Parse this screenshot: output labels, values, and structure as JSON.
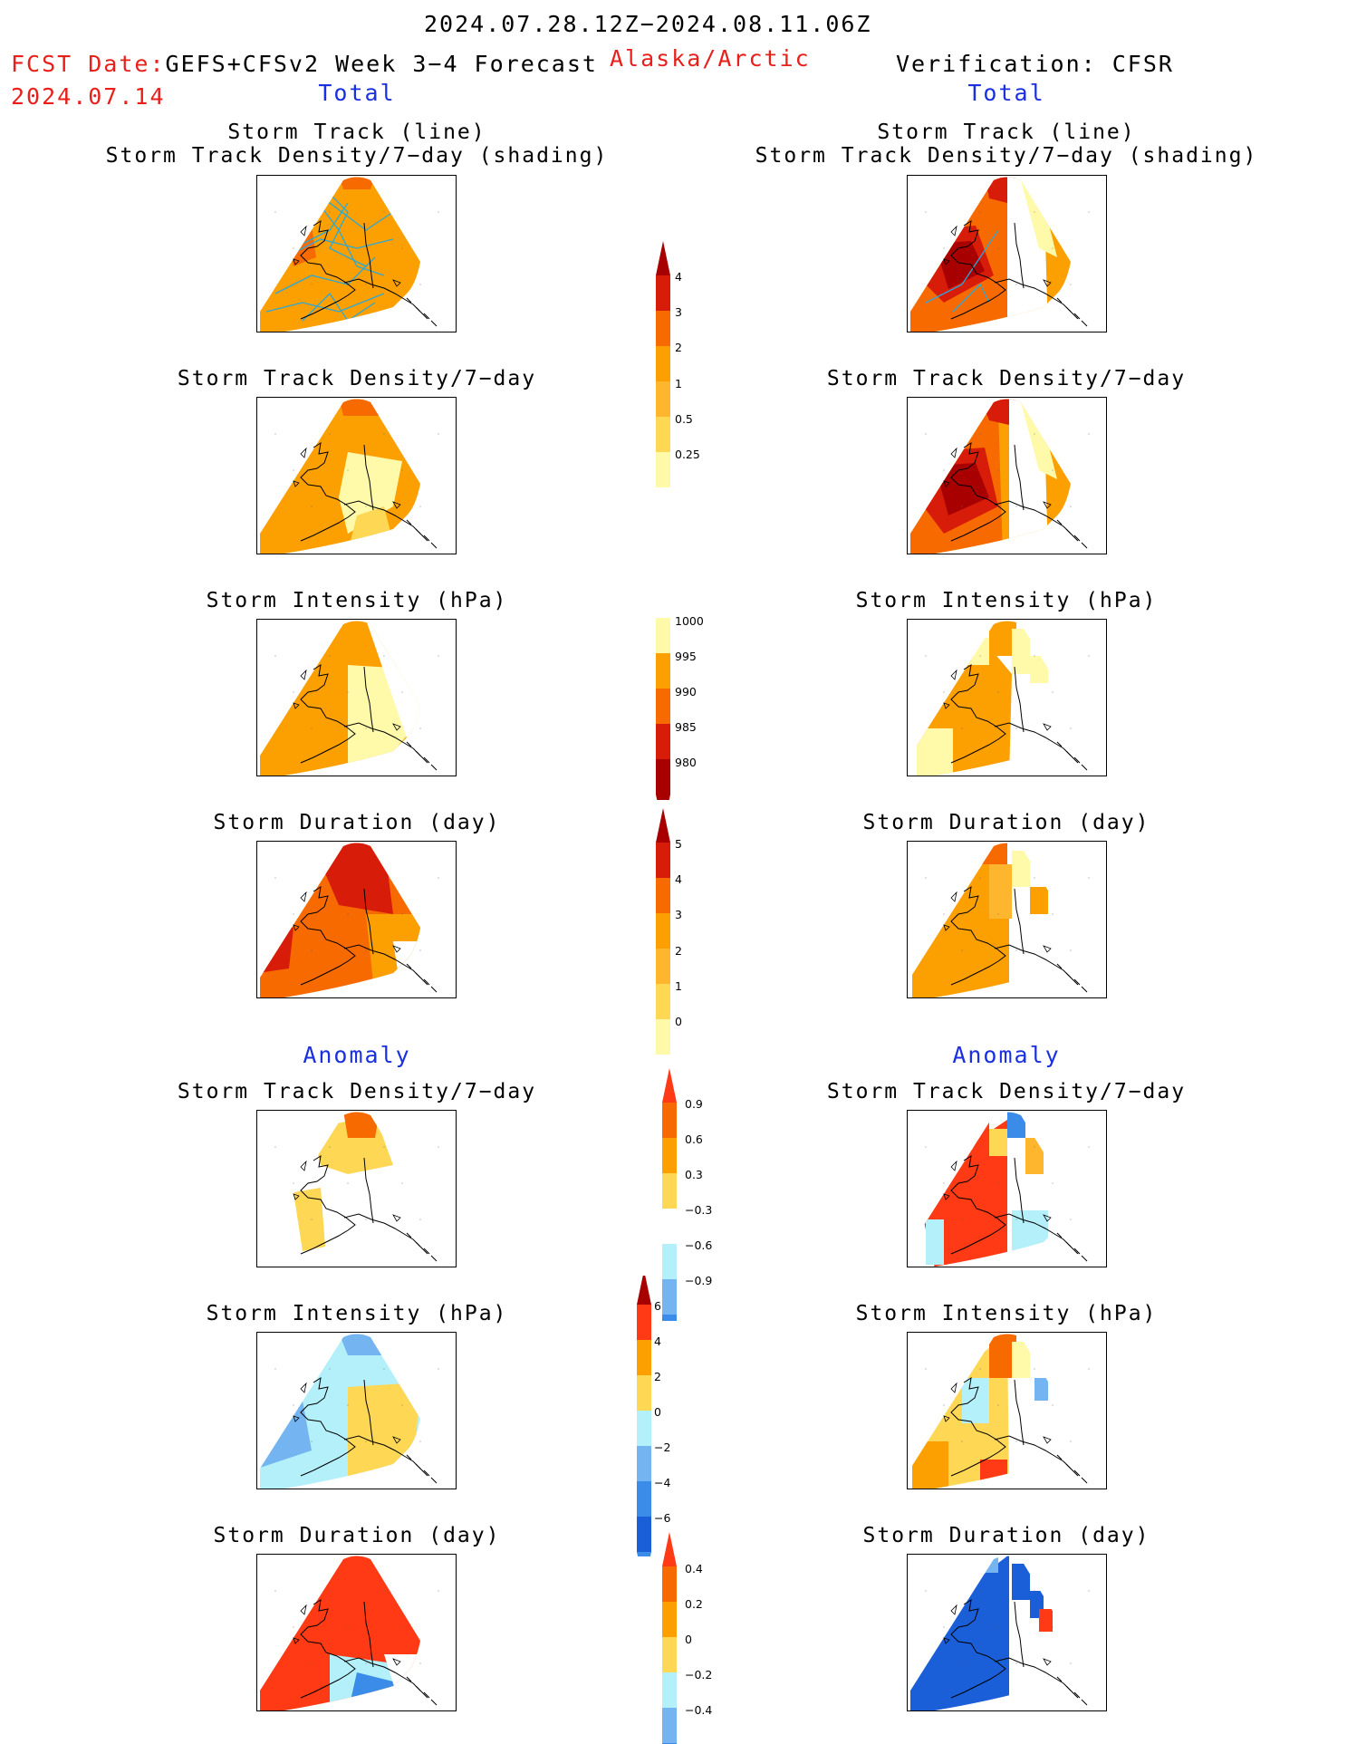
{
  "header": {
    "date_range": "2024.07.28.12Z−2024.08.11.06Z",
    "fcst_label": "FCST Date:",
    "fcst_model": "GEFS+CFSv2 Week 3−4 Forecast",
    "fcst_date": "2024.07.14",
    "region": "Alaska/Arctic",
    "verification": "Verification: CFSR"
  },
  "sections": {
    "total_left": "Total",
    "total_right": "Total",
    "anomaly_left": "Anomaly",
    "anomaly_right": "Anomaly"
  },
  "titles": {
    "storm_track_line": "Storm Track (line)",
    "storm_track_density_shading": "Storm Track Density/7−day (shading)",
    "storm_track_density": "Storm Track Density/7−day",
    "storm_intensity": "Storm Intensity (hPa)",
    "storm_duration": "Storm Duration (day)"
  },
  "colorbars": {
    "density": [
      "4",
      "3",
      "2",
      "1",
      "0.5",
      "0.25"
    ],
    "intensity": [
      "1000",
      "995",
      "990",
      "985",
      "980"
    ],
    "duration": [
      "5",
      "4",
      "3",
      "2",
      "1",
      "0"
    ],
    "density_anom": [
      "0.9",
      "0.6",
      "0.3",
      "−0.3",
      "−0.6",
      "−0.9"
    ],
    "intensity_anom": [
      "6",
      "4",
      "2",
      "0",
      "−2",
      "−4",
      "−6"
    ],
    "duration_anom": [
      "0.4",
      "0.2",
      "0",
      "−0.2",
      "−0.4"
    ]
  },
  "colors": {
    "pale_yellow": "#fffaaa",
    "yellow": "#fed755",
    "light_orange": "#fdb62e",
    "orange": "#fba000",
    "dark_orange": "#f66a00",
    "red_orange": "#ff3a14",
    "red": "#d81c0a",
    "dark_red": "#a80000",
    "light_blue": "#b4f0fa",
    "sky_blue": "#74b4f0",
    "mid_blue": "#3a8ce8",
    "deep_blue": "#1a5fd8",
    "track_line": "#2aa8d8"
  }
}
